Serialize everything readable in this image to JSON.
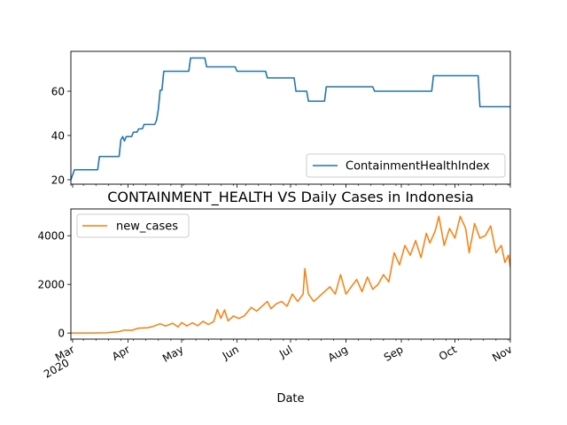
{
  "chart_data": [
    {
      "type": "line",
      "title": "",
      "xlabel": "",
      "ylabel": "",
      "x_range": [
        "2020-02-29",
        "2020-11-01"
      ],
      "ylim": [
        18,
        78
      ],
      "yticks": [
        20,
        40,
        60
      ],
      "grid": false,
      "legend_position": "lower-right",
      "series": [
        {
          "name": "ContainmentHealthIndex",
          "color": "#1f77b4",
          "step_points": [
            [
              "2020-02-29",
              20
            ],
            [
              "2020-03-02",
              24.5
            ],
            [
              "2020-03-15",
              24.5
            ],
            [
              "2020-03-16",
              30.5
            ],
            [
              "2020-03-27",
              30.5
            ],
            [
              "2020-03-28",
              38
            ],
            [
              "2020-03-29",
              39.5
            ],
            [
              "2020-03-30",
              37.5
            ],
            [
              "2020-03-31",
              39.5
            ],
            [
              "2020-04-03",
              39.5
            ],
            [
              "2020-04-04",
              41.5
            ],
            [
              "2020-04-06",
              41.5
            ],
            [
              "2020-04-07",
              43
            ],
            [
              "2020-04-09",
              43
            ],
            [
              "2020-04-10",
              45
            ],
            [
              "2020-04-16",
              45
            ],
            [
              "2020-04-17",
              47
            ],
            [
              "2020-04-18",
              52
            ],
            [
              "2020-04-19",
              60.5
            ],
            [
              "2020-04-20",
              60.5
            ],
            [
              "2020-04-21",
              69
            ],
            [
              "2020-05-05",
              69
            ],
            [
              "2020-05-06",
              75
            ],
            [
              "2020-05-14",
              75
            ],
            [
              "2020-05-15",
              71
            ],
            [
              "2020-05-31",
              71
            ],
            [
              "2020-06-01",
              69
            ],
            [
              "2020-06-17",
              69
            ],
            [
              "2020-06-18",
              66
            ],
            [
              "2020-07-03",
              66
            ],
            [
              "2020-07-04",
              60
            ],
            [
              "2020-07-10",
              60
            ],
            [
              "2020-07-11",
              55.5
            ],
            [
              "2020-07-20",
              55.5
            ],
            [
              "2020-07-21",
              62
            ],
            [
              "2020-08-16",
              62
            ],
            [
              "2020-08-17",
              60
            ],
            [
              "2020-09-18",
              60
            ],
            [
              "2020-09-19",
              67
            ],
            [
              "2020-10-14",
              67
            ],
            [
              "2020-10-15",
              53
            ],
            [
              "2020-11-01",
              53
            ]
          ]
        }
      ]
    },
    {
      "type": "line",
      "title": "CONTAINMENT_HEALTH VS Daily Cases in Indonesia",
      "xlabel": "Date",
      "ylabel": "",
      "x_range": [
        "2020-02-29",
        "2020-11-01"
      ],
      "ylim": [
        -250,
        5100
      ],
      "yticks": [
        0,
        2000,
        4000
      ],
      "xticks": [
        {
          "date": "2020-03-01",
          "label": "Mar",
          "sublabel": "2020"
        },
        {
          "date": "2020-04-01",
          "label": "Apr",
          "sublabel": ""
        },
        {
          "date": "2020-05-01",
          "label": "May",
          "sublabel": ""
        },
        {
          "date": "2020-06-01",
          "label": "Jun",
          "sublabel": ""
        },
        {
          "date": "2020-07-01",
          "label": "Jul",
          "sublabel": ""
        },
        {
          "date": "2020-08-01",
          "label": "Aug",
          "sublabel": ""
        },
        {
          "date": "2020-09-01",
          "label": "Sep",
          "sublabel": ""
        },
        {
          "date": "2020-10-01",
          "label": "Oct",
          "sublabel": ""
        },
        {
          "date": "2020-11-01",
          "label": "Nov",
          "sublabel": ""
        }
      ],
      "grid": false,
      "legend_position": "upper-left",
      "series": [
        {
          "name": "new_cases",
          "color": "#ff7f0e",
          "points": [
            [
              "2020-02-29",
              0
            ],
            [
              "2020-03-10",
              0
            ],
            [
              "2020-03-20",
              10
            ],
            [
              "2020-03-27",
              60
            ],
            [
              "2020-03-30",
              120
            ],
            [
              "2020-04-03",
              110
            ],
            [
              "2020-04-07",
              200
            ],
            [
              "2020-04-12",
              220
            ],
            [
              "2020-04-15",
              270
            ],
            [
              "2020-04-19",
              380
            ],
            [
              "2020-04-22",
              290
            ],
            [
              "2020-04-26",
              400
            ],
            [
              "2020-04-29",
              250
            ],
            [
              "2020-05-01",
              430
            ],
            [
              "2020-05-04",
              290
            ],
            [
              "2020-05-07",
              420
            ],
            [
              "2020-05-10",
              300
            ],
            [
              "2020-05-13",
              480
            ],
            [
              "2020-05-16",
              350
            ],
            [
              "2020-05-19",
              470
            ],
            [
              "2020-05-21",
              970
            ],
            [
              "2020-05-23",
              600
            ],
            [
              "2020-05-25",
              950
            ],
            [
              "2020-05-27",
              500
            ],
            [
              "2020-05-30",
              700
            ],
            [
              "2020-06-02",
              600
            ],
            [
              "2020-06-05",
              700
            ],
            [
              "2020-06-09",
              1050
            ],
            [
              "2020-06-12",
              900
            ],
            [
              "2020-06-15",
              1100
            ],
            [
              "2020-06-18",
              1300
            ],
            [
              "2020-06-20",
              1000
            ],
            [
              "2020-06-23",
              1200
            ],
            [
              "2020-06-26",
              1300
            ],
            [
              "2020-06-29",
              1100
            ],
            [
              "2020-07-02",
              1600
            ],
            [
              "2020-07-05",
              1300
            ],
            [
              "2020-07-08",
              1600
            ],
            [
              "2020-07-09",
              2650
            ],
            [
              "2020-07-11",
              1600
            ],
            [
              "2020-07-14",
              1300
            ],
            [
              "2020-07-17",
              1500
            ],
            [
              "2020-07-20",
              1700
            ],
            [
              "2020-07-23",
              1900
            ],
            [
              "2020-07-26",
              1600
            ],
            [
              "2020-07-29",
              2400
            ],
            [
              "2020-08-01",
              1600
            ],
            [
              "2020-08-04",
              1900
            ],
            [
              "2020-08-07",
              2200
            ],
            [
              "2020-08-10",
              1700
            ],
            [
              "2020-08-13",
              2300
            ],
            [
              "2020-08-16",
              1800
            ],
            [
              "2020-08-19",
              2000
            ],
            [
              "2020-08-22",
              2400
            ],
            [
              "2020-08-25",
              2100
            ],
            [
              "2020-08-28",
              3300
            ],
            [
              "2020-08-31",
              2800
            ],
            [
              "2020-09-03",
              3600
            ],
            [
              "2020-09-06",
              3200
            ],
            [
              "2020-09-09",
              3800
            ],
            [
              "2020-09-12",
              3100
            ],
            [
              "2020-09-15",
              4100
            ],
            [
              "2020-09-17",
              3700
            ],
            [
              "2020-09-20",
              4200
            ],
            [
              "2020-09-22",
              4800
            ],
            [
              "2020-09-25",
              3600
            ],
            [
              "2020-09-28",
              4300
            ],
            [
              "2020-10-01",
              3900
            ],
            [
              "2020-10-04",
              4800
            ],
            [
              "2020-10-07",
              4300
            ],
            [
              "2020-10-09",
              3300
            ],
            [
              "2020-10-12",
              4500
            ],
            [
              "2020-10-15",
              3900
            ],
            [
              "2020-10-18",
              4000
            ],
            [
              "2020-10-21",
              4400
            ],
            [
              "2020-10-24",
              3300
            ],
            [
              "2020-10-27",
              3600
            ],
            [
              "2020-10-29",
              2900
            ],
            [
              "2020-10-31",
              3200
            ],
            [
              "2020-11-01",
              2700
            ]
          ]
        }
      ]
    }
  ]
}
